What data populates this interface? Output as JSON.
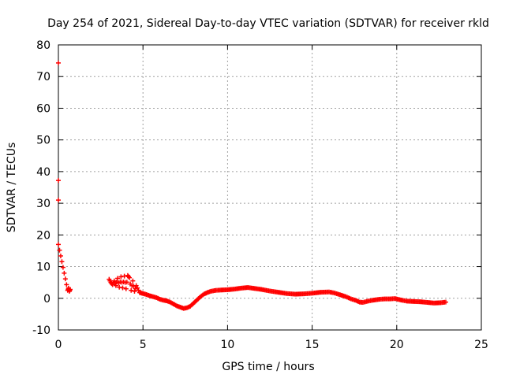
{
  "chart_data": {
    "type": "scatter",
    "title": "Day 254 of 2021, Sidereal Day-to-day VTEC variation (SDTVAR) for receiver rkld",
    "xlabel": "GPS time / hours",
    "ylabel": "SDTVAR / TECUs",
    "xlim": [
      0,
      25
    ],
    "ylim": [
      -10,
      80
    ],
    "xticks": [
      "0",
      "5",
      "10",
      "15",
      "20",
      "25"
    ],
    "yticks": [
      "-10",
      "0",
      "10",
      "20",
      "30",
      "40",
      "50",
      "60",
      "70",
      "80"
    ],
    "grid": true,
    "marker_color": "#ff0000",
    "series": [
      {
        "name": "SDTVAR",
        "points": [
          [
            0.0,
            74.3
          ],
          [
            0.0,
            37.2
          ],
          [
            0.0,
            31.0
          ],
          [
            0.0,
            17.0
          ],
          [
            0.55,
            2.5
          ],
          [
            0.6,
            3.2
          ],
          [
            0.65,
            2.2
          ],
          [
            0.7,
            2.8
          ],
          [
            3.0,
            6.0
          ],
          [
            3.1,
            5.0
          ],
          [
            3.2,
            4.3
          ],
          [
            3.3,
            5.5
          ],
          [
            3.4,
            4.0
          ],
          [
            3.5,
            6.3
          ],
          [
            3.6,
            3.5
          ],
          [
            3.7,
            6.8
          ],
          [
            3.8,
            3.3
          ],
          [
            3.9,
            7.0
          ],
          [
            4.0,
            3.0
          ],
          [
            4.1,
            7.2
          ],
          [
            4.2,
            6.5
          ],
          [
            4.3,
            2.5
          ],
          [
            4.4,
            5.5
          ],
          [
            4.5,
            2.2
          ],
          [
            4.6,
            4.0
          ],
          [
            4.8,
            1.8
          ],
          [
            5.0,
            1.5
          ],
          [
            5.2,
            1.2
          ],
          [
            5.4,
            0.8
          ],
          [
            5.6,
            0.5
          ],
          [
            5.8,
            0.2
          ],
          [
            6.0,
            -0.3
          ],
          [
            6.2,
            -0.6
          ],
          [
            6.4,
            -0.8
          ],
          [
            6.6,
            -1.2
          ],
          [
            6.8,
            -1.8
          ],
          [
            7.0,
            -2.4
          ],
          [
            7.2,
            -2.8
          ],
          [
            7.4,
            -3.2
          ],
          [
            7.6,
            -3.0
          ],
          [
            7.8,
            -2.5
          ],
          [
            8.0,
            -1.5
          ],
          [
            8.2,
            -0.5
          ],
          [
            8.4,
            0.5
          ],
          [
            8.6,
            1.3
          ],
          [
            8.8,
            1.8
          ],
          [
            9.0,
            2.2
          ],
          [
            9.3,
            2.5
          ],
          [
            9.6,
            2.6
          ],
          [
            10.0,
            2.7
          ],
          [
            10.4,
            2.9
          ],
          [
            10.8,
            3.2
          ],
          [
            11.2,
            3.4
          ],
          [
            11.6,
            3.1
          ],
          [
            12.0,
            2.8
          ],
          [
            12.5,
            2.3
          ],
          [
            13.0,
            1.9
          ],
          [
            13.5,
            1.5
          ],
          [
            14.0,
            1.3
          ],
          [
            14.5,
            1.4
          ],
          [
            15.0,
            1.6
          ],
          [
            15.5,
            1.9
          ],
          [
            16.0,
            2.0
          ],
          [
            16.3,
            1.7
          ],
          [
            16.6,
            1.2
          ],
          [
            17.0,
            0.5
          ],
          [
            17.3,
            -0.2
          ],
          [
            17.6,
            -0.7
          ],
          [
            17.8,
            -1.2
          ],
          [
            18.0,
            -1.3
          ],
          [
            18.3,
            -0.9
          ],
          [
            18.6,
            -0.6
          ],
          [
            19.0,
            -0.3
          ],
          [
            19.3,
            -0.2
          ],
          [
            19.6,
            -0.2
          ],
          [
            19.9,
            -0.1
          ],
          [
            20.3,
            -0.6
          ],
          [
            20.6,
            -0.9
          ],
          [
            21.0,
            -1.0
          ],
          [
            21.4,
            -1.1
          ],
          [
            21.8,
            -1.3
          ],
          [
            22.2,
            -1.5
          ],
          [
            22.6,
            -1.4
          ],
          [
            22.9,
            -1.2
          ]
        ]
      }
    ]
  }
}
